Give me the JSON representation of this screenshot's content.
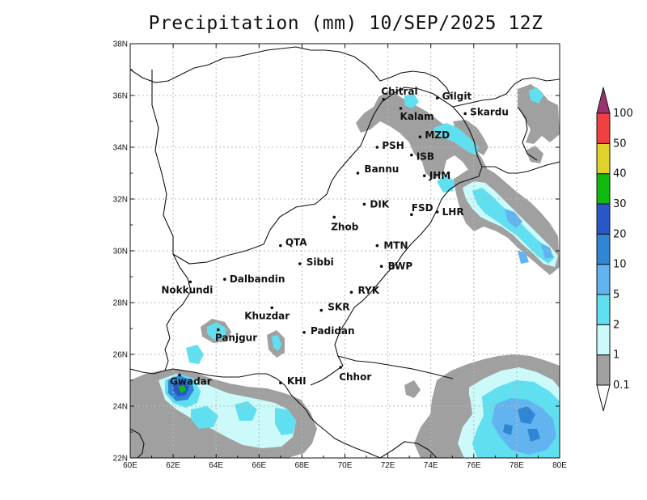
{
  "title": "Precipitation (mm) 10/SEP/2025 12Z",
  "map": {
    "lon_range": [
      60,
      80
    ],
    "lat_range": [
      22,
      38
    ],
    "lon_ticks": [
      "60E",
      "62E",
      "64E",
      "66E",
      "68E",
      "70E",
      "72E",
      "74E",
      "76E",
      "78E",
      "80E"
    ],
    "lat_ticks": [
      "22N",
      "24N",
      "26N",
      "28N",
      "30N",
      "32N",
      "34N",
      "36N",
      "38N"
    ],
    "grid": true
  },
  "cities": [
    {
      "name": "Chitral",
      "lon": 71.8,
      "lat": 35.85
    },
    {
      "name": "Gilgit",
      "lon": 74.3,
      "lat": 35.9
    },
    {
      "name": "Kalam",
      "lon": 72.6,
      "lat": 35.5
    },
    {
      "name": "Skardu",
      "lon": 75.6,
      "lat": 35.3
    },
    {
      "name": "MZD",
      "lon": 73.5,
      "lat": 34.4
    },
    {
      "name": "PSH",
      "lon": 71.5,
      "lat": 34.0
    },
    {
      "name": "ISB",
      "lon": 73.1,
      "lat": 33.7
    },
    {
      "name": "JHM",
      "lon": 73.7,
      "lat": 32.9
    },
    {
      "name": "Bannu",
      "lon": 70.6,
      "lat": 33.0
    },
    {
      "name": "DIK",
      "lon": 70.9,
      "lat": 31.8
    },
    {
      "name": "FSD",
      "lon": 73.1,
      "lat": 31.4
    },
    {
      "name": "LHR",
      "lon": 74.3,
      "lat": 31.5
    },
    {
      "name": "Zhob",
      "lon": 69.5,
      "lat": 31.3
    },
    {
      "name": "QTA",
      "lon": 67.0,
      "lat": 30.2
    },
    {
      "name": "MTN",
      "lon": 71.5,
      "lat": 30.2
    },
    {
      "name": "Sibbi",
      "lon": 67.9,
      "lat": 29.5
    },
    {
      "name": "BWP",
      "lon": 71.7,
      "lat": 29.4
    },
    {
      "name": "Dalbandin",
      "lon": 64.4,
      "lat": 28.9
    },
    {
      "name": "Nokkundi",
      "lon": 62.8,
      "lat": 28.8
    },
    {
      "name": "RYK",
      "lon": 70.3,
      "lat": 28.4
    },
    {
      "name": "Khuzdar",
      "lon": 66.6,
      "lat": 27.8
    },
    {
      "name": "SKR",
      "lon": 68.9,
      "lat": 27.7
    },
    {
      "name": "Padidan",
      "lon": 68.1,
      "lat": 26.85
    },
    {
      "name": "Panjgur",
      "lon": 64.1,
      "lat": 26.95
    },
    {
      "name": "Chhor",
      "lon": 69.8,
      "lat": 25.5
    },
    {
      "name": "KHI",
      "lon": 67.0,
      "lat": 24.9
    },
    {
      "name": "Gwadar",
      "lon": 62.3,
      "lat": 25.2
    }
  ],
  "legend": {
    "unit": "mm",
    "levels": [
      "0.1",
      "1",
      "2",
      "5",
      "10",
      "20",
      "30",
      "40",
      "50",
      "100"
    ],
    "colors": [
      "#ffffff",
      "#a0a0a0",
      "#ccfafa",
      "#5fdff0",
      "#62b4f0",
      "#2e86d4",
      "#2a57c8",
      "#0fb90f",
      "#e0d22a",
      "#f04040",
      "#9b3370"
    ]
  },
  "precip_colors": {
    "grey": "#a0a0a0",
    "pale_cyan": "#ccfafa",
    "cyan": "#5fdff0",
    "light_blue": "#62b4f0",
    "blue": "#2e86d4",
    "dark_blue": "#2a57c8",
    "green": "#0fb90f"
  }
}
